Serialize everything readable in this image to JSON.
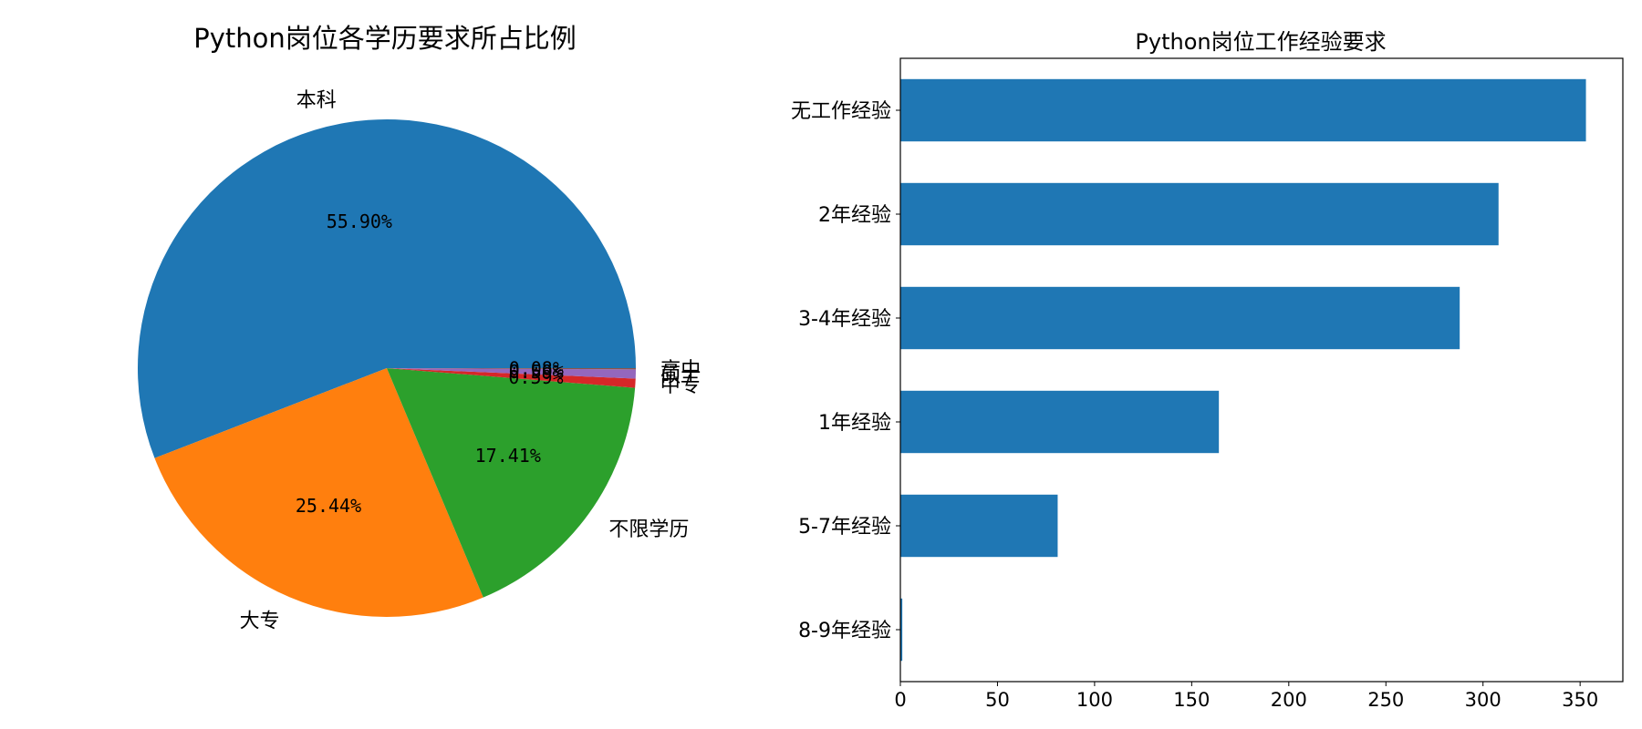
{
  "chart_data": [
    {
      "type": "pie",
      "title": "Python岗位各学历要求所占比例",
      "slices": [
        {
          "label": "本科",
          "value": 55.9,
          "pct_label": "55.90%",
          "color": "#1f77b4"
        },
        {
          "label": "大专",
          "value": 25.44,
          "pct_label": "25.44%",
          "color": "#ff7f0e"
        },
        {
          "label": "不限学历",
          "value": 17.41,
          "pct_label": "17.41%",
          "color": "#2ca02c"
        },
        {
          "label": "中专",
          "value": 0.59,
          "pct_label": "0.59%",
          "color": "#d62728"
        },
        {
          "label": "硕士",
          "value": 0.59,
          "pct_label": "0.59%",
          "color": "#9467bd"
        },
        {
          "label": "高中",
          "value": 0.08,
          "pct_label": "0.08%",
          "color": "#8c564b"
        }
      ],
      "start_angle": 0,
      "direction": "counterclockwise"
    },
    {
      "type": "bar",
      "orientation": "horizontal",
      "title": "Python岗位工作经验要求",
      "categories": [
        "无工作经验",
        "2年经验",
        "3-4年经验",
        "1年经验",
        "5-7年经验",
        "8-9年经验"
      ],
      "values": [
        353,
        308,
        288,
        164,
        81,
        1
      ],
      "xlim": [
        0,
        372
      ],
      "xticks": [
        0,
        50,
        100,
        150,
        200,
        250,
        300,
        350
      ],
      "color": "#1f77b4",
      "grid": false
    }
  ]
}
